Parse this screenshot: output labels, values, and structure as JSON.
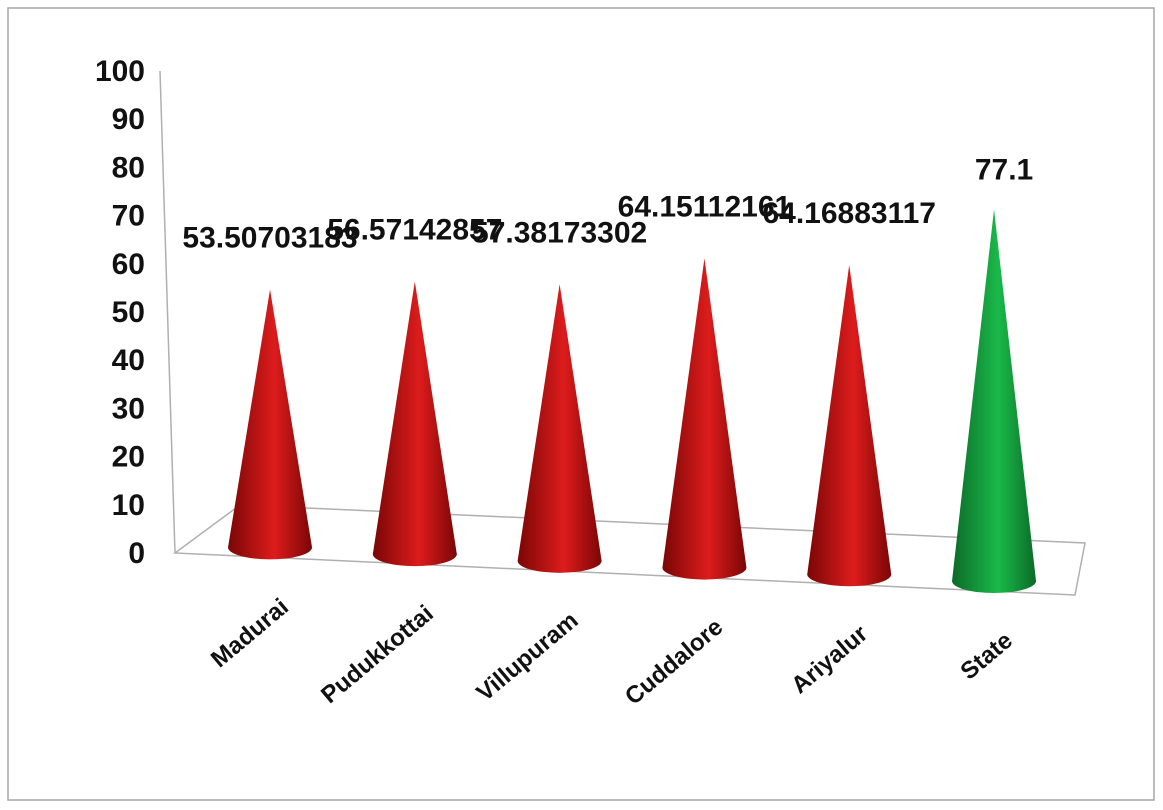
{
  "chart_data": {
    "type": "bar",
    "shape": "cone-3d",
    "categories": [
      "Madurai",
      "Pudukkottai",
      "Villupuram",
      "Cuddalore",
      "Ariyalur",
      "State"
    ],
    "values": [
      53.50703183,
      56.57142857,
      57.38173302,
      64.15112161,
      64.16883117,
      77.1
    ],
    "data_labels": [
      "53.50703183",
      "56.57142857",
      "57.38173302",
      "64.15112161",
      "64.16883117",
      "77.1"
    ],
    "title": "",
    "xlabel": "",
    "ylabel": "",
    "ylim": [
      0,
      100
    ],
    "yticks": [
      "0",
      "10",
      "20",
      "30",
      "40",
      "50",
      "60",
      "70",
      "80",
      "90",
      "100"
    ],
    "grid": false,
    "legend": "none",
    "colors": {
      "district": "#dd1c1c",
      "district_dark": "#7a0606",
      "state": "#1ab94a",
      "state_dark": "#0b6b27",
      "axis": "#b0b0b0",
      "frame": "#a6a6a6"
    }
  }
}
